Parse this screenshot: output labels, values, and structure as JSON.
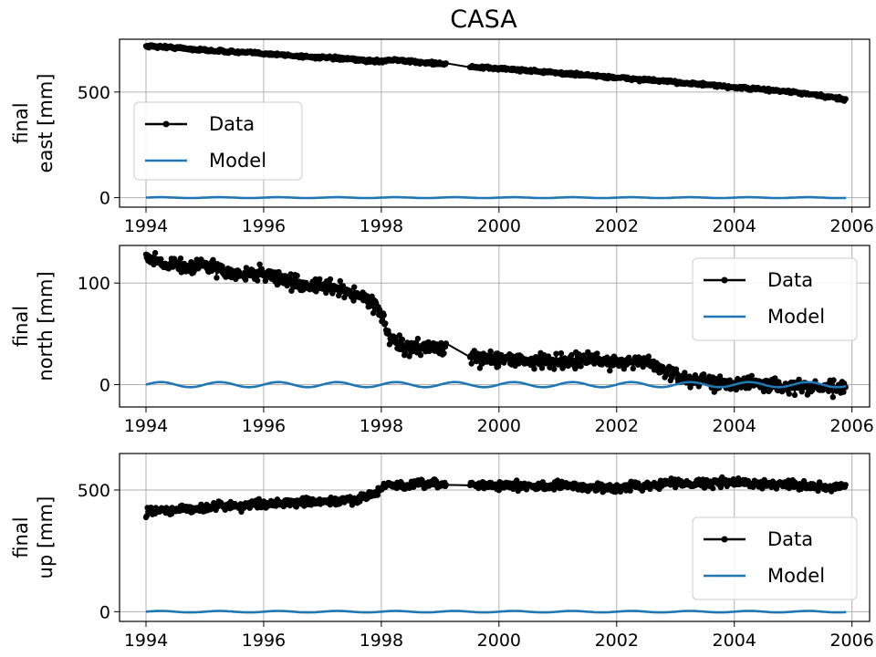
{
  "title": "CASA",
  "chart_data": [
    {
      "type": "line",
      "ylabel_lines": [
        "final",
        "east [mm]"
      ],
      "xlim": [
        1993.55,
        2006.3
      ],
      "ylim": [
        -45,
        750
      ],
      "xticks": [
        1994,
        1996,
        1998,
        2000,
        2002,
        2004,
        2006
      ],
      "yticks": [
        0,
        500
      ],
      "grid": true,
      "legend": {
        "placement": "center-left",
        "entries": [
          "Data",
          "Model"
        ]
      },
      "series": [
        {
          "name": "Data",
          "color": "#000000",
          "marker": "point",
          "noise": 5,
          "x": [
            1994.0,
            1994.5,
            1995.0,
            1995.5,
            1996.0,
            1996.5,
            1997.0,
            1997.5,
            1997.9,
            1998.2,
            1998.6,
            1999.0,
            1999.2,
            1999.5,
            2000.0,
            2000.5,
            2001.0,
            2001.5,
            2002.0,
            2002.5,
            2003.0,
            2003.5,
            2004.0,
            2004.5,
            2005.0,
            2005.5,
            2005.9
          ],
          "y": [
            718,
            710,
            698,
            690,
            683,
            672,
            663,
            655,
            645,
            653,
            642,
            635,
            630,
            618,
            612,
            602,
            590,
            580,
            568,
            558,
            547,
            535,
            522,
            512,
            500,
            480,
            465
          ],
          "gaps": [
            [
              1999.1,
              1999.5
            ]
          ]
        },
        {
          "name": "Model",
          "color": "#1f77b4",
          "x0": 1994.0,
          "x1": 2005.9,
          "offset": 0,
          "amp": 2,
          "period": 1.0
        }
      ]
    },
    {
      "type": "line",
      "ylabel_lines": [
        "final",
        "north [mm]"
      ],
      "xlim": [
        1993.55,
        2006.3
      ],
      "ylim": [
        -22,
        137
      ],
      "xticks": [
        1994,
        1996,
        1998,
        2000,
        2002,
        2004,
        2006
      ],
      "yticks": [
        0,
        100
      ],
      "grid": true,
      "legend": {
        "placement": "top-right",
        "entries": [
          "Data",
          "Model"
        ]
      },
      "series": [
        {
          "name": "Data",
          "color": "#000000",
          "marker": "point",
          "noise": 5,
          "x": [
            1994.0,
            1994.3,
            1994.7,
            1995.0,
            1995.5,
            1996.0,
            1996.5,
            1997.0,
            1997.3,
            1997.6,
            1997.85,
            1998.0,
            1998.15,
            1998.4,
            1998.7,
            1999.0,
            1999.1,
            1999.5,
            2000.0,
            2000.5,
            2001.0,
            2001.5,
            2002.0,
            2002.5,
            2002.8,
            2003.0,
            2003.5,
            2004.0,
            2004.5,
            2005.0,
            2005.5,
            2005.9
          ],
          "y": [
            126,
            120,
            116,
            118,
            108,
            110,
            100,
            96,
            94,
            88,
            82,
            70,
            45,
            35,
            37,
            36,
            36,
            25,
            26,
            24,
            23,
            24,
            23,
            22,
            15,
            8,
            3,
            2,
            0,
            -2,
            -3,
            -4
          ],
          "gaps": [
            [
              1999.1,
              1999.5
            ]
          ]
        },
        {
          "name": "Model",
          "color": "#1f77b4",
          "x0": 1994.0,
          "x1": 2005.9,
          "offset": 0,
          "amp": 2.5,
          "period": 1.0
        }
      ]
    },
    {
      "type": "line",
      "ylabel_lines": [
        "final",
        "up [mm]"
      ],
      "xlim": [
        1993.55,
        2006.3
      ],
      "ylim": [
        -40,
        650
      ],
      "xticks": [
        1994,
        1996,
        1998,
        2000,
        2002,
        2004,
        2006
      ],
      "yticks": [
        0,
        500
      ],
      "grid": true,
      "legend": {
        "placement": "lower-right",
        "entries": [
          "Data",
          "Model"
        ]
      },
      "series": [
        {
          "name": "Data",
          "color": "#000000",
          "marker": "point",
          "noise": 12,
          "x": [
            1994.0,
            1994.5,
            1995.0,
            1995.3,
            1995.5,
            1996.0,
            1996.5,
            1997.0,
            1997.5,
            1997.8,
            1998.0,
            1998.1,
            1998.3,
            1998.6,
            1999.0,
            1999.5,
            2000.0,
            2000.5,
            2001.0,
            2001.5,
            2002.0,
            2002.5,
            2003.0,
            2003.5,
            2004.0,
            2004.5,
            2005.0,
            2005.5,
            2005.9
          ],
          "y": [
            410,
            418,
            425,
            440,
            432,
            445,
            448,
            450,
            458,
            478,
            500,
            525,
            515,
            522,
            525,
            522,
            518,
            515,
            520,
            512,
            508,
            520,
            530,
            528,
            532,
            525,
            525,
            510,
            512
          ],
          "gaps": [
            [
              1999.1,
              1999.5
            ]
          ]
        },
        {
          "name": "Model",
          "color": "#1f77b4",
          "x0": 1994.0,
          "x1": 2005.9,
          "offset": 0,
          "amp": 3,
          "period": 1.0
        }
      ]
    }
  ]
}
